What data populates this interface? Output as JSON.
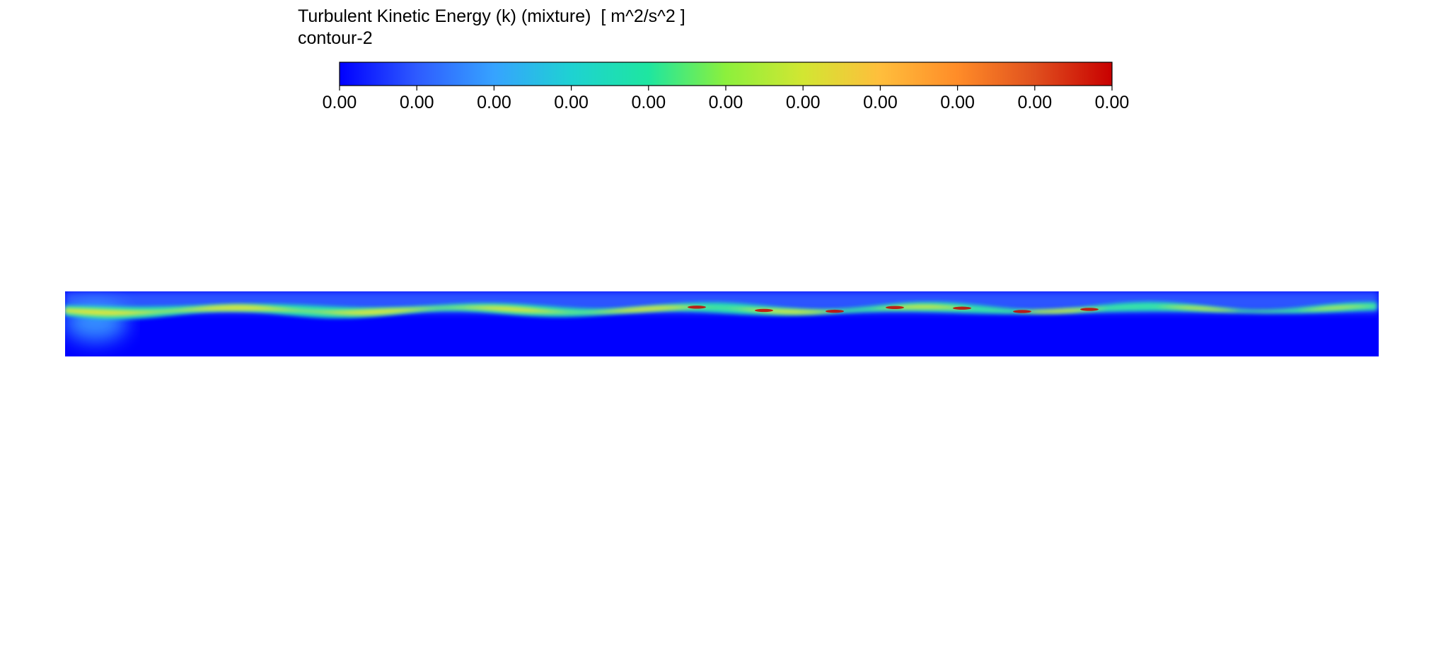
{
  "chart_data": {
    "type": "heatmap",
    "title": "Turbulent Kinetic Energy (k) (mixture)  [ m^2/s^2 ]",
    "subtitle": "contour-2",
    "colorbar": {
      "orientation": "horizontal",
      "tick_labels": [
        "0.00",
        "0.00",
        "0.00",
        "0.00",
        "0.00",
        "0.00",
        "0.00",
        "0.00",
        "0.00",
        "0.00",
        "0.00"
      ],
      "colormap": [
        "#0000ff",
        "#2e5bff",
        "#36a3ff",
        "#1ed2d2",
        "#1ee6a0",
        "#8cf03c",
        "#d2e632",
        "#ffbe3c",
        "#ff8c28",
        "#e0501e",
        "#c80000"
      ]
    },
    "field": {
      "description_colors": {
        "background": "#0000ff",
        "shear_layer": "#22e6b4",
        "core": "#f0e632",
        "hotspot": "#c80000"
      }
    }
  }
}
